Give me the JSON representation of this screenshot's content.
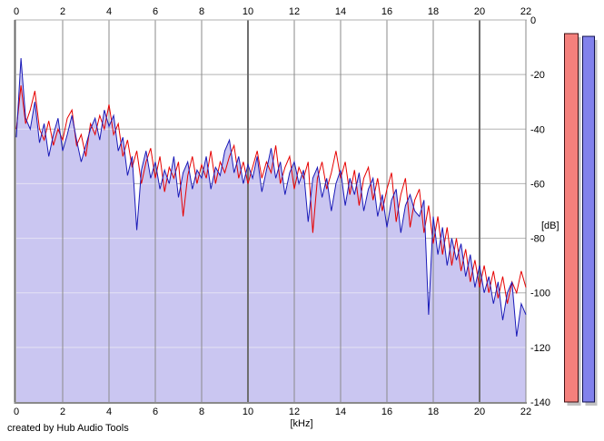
{
  "footer": {
    "credit": "created by Hub Audio Tools"
  },
  "axes": {
    "x": {
      "unit_label": "[kHz]",
      "ticks": [
        0,
        2,
        4,
        6,
        8,
        10,
        12,
        14,
        16,
        18,
        20,
        22
      ]
    },
    "y": {
      "unit_label": "[dB]",
      "ticks": [
        0,
        -20,
        -40,
        -60,
        -80,
        -100,
        -120,
        -140
      ]
    }
  },
  "colors": {
    "background": "#ffffff",
    "grid_vertical": "#8a8a8a",
    "grid_vertical_major": "#6e6e6e",
    "grid_horizontal": "#b2b2b2",
    "grid_horizontal_on_fill": "#e4e2f4",
    "axis_left": "#6a6a6a",
    "axis_bottom": "#8a8a8a",
    "axis_top": "#b2b2b2",
    "axis_right": "#8a8a8a",
    "text": "#000000",
    "meter_shadow": "#c2c2c2"
  },
  "meters": [
    {
      "name": "left-meter",
      "peak_db": -5,
      "fill": "#f4807c",
      "border": "#401014"
    },
    {
      "name": "right-meter",
      "peak_db": -6,
      "fill": "#8282ec",
      "border": "#101050"
    }
  ],
  "chart_data": {
    "type": "line",
    "title": "",
    "xlabel": "[kHz]",
    "ylabel": "[dB]",
    "xlim": [
      0,
      22
    ],
    "ylim": [
      -140,
      0
    ],
    "x_ticks": [
      0,
      2,
      4,
      6,
      8,
      10,
      12,
      14,
      16,
      18,
      20,
      22
    ],
    "y_ticks": [
      0,
      -20,
      -40,
      -60,
      -80,
      -100,
      -120,
      -140
    ],
    "grid": true,
    "legend": "none",
    "x_start": 0,
    "x_step_khz": 0.2,
    "series": [
      {
        "name": "red-channel",
        "color": "#e60000",
        "values_db": [
          -40,
          -24,
          -38,
          -33,
          -26,
          -40,
          -44,
          -37,
          -46,
          -40,
          -44,
          -36,
          -33,
          -46,
          -42,
          -50,
          -38,
          -42,
          -35,
          -40,
          -31,
          -42,
          -38,
          -50,
          -44,
          -54,
          -48,
          -60,
          -52,
          -47,
          -58,
          -50,
          -63,
          -54,
          -58,
          -52,
          -72,
          -57,
          -50,
          -60,
          -53,
          -58,
          -48,
          -60,
          -52,
          -56,
          -50,
          -46,
          -58,
          -52,
          -60,
          -54,
          -48,
          -58,
          -52,
          -56,
          -46,
          -60,
          -54,
          -50,
          -62,
          -54,
          -58,
          -52,
          -78,
          -58,
          -52,
          -62,
          -56,
          -48,
          -58,
          -52,
          -64,
          -55,
          -68,
          -58,
          -54,
          -66,
          -58,
          -70,
          -62,
          -56,
          -74,
          -64,
          -58,
          -76,
          -66,
          -62,
          -78,
          -68,
          -82,
          -72,
          -86,
          -76,
          -90,
          -80,
          -92,
          -84,
          -96,
          -88,
          -98,
          -90,
          -100,
          -92,
          -102,
          -94,
          -104,
          -96,
          -100,
          -92,
          -98
        ]
      },
      {
        "name": "blue-channel",
        "color": "#1a1ab8",
        "fill_under": "#cac6f1",
        "values_db": [
          -43,
          -14,
          -36,
          -40,
          -30,
          -45,
          -38,
          -50,
          -42,
          -36,
          -48,
          -42,
          -35,
          -44,
          -52,
          -46,
          -40,
          -36,
          -44,
          -33,
          -39,
          -35,
          -48,
          -43,
          -57,
          -50,
          -77,
          -55,
          -48,
          -58,
          -52,
          -62,
          -55,
          -60,
          -50,
          -65,
          -56,
          -52,
          -62,
          -55,
          -58,
          -50,
          -62,
          -54,
          -57,
          -48,
          -44,
          -56,
          -50,
          -60,
          -53,
          -58,
          -50,
          -63,
          -55,
          -47,
          -58,
          -52,
          -64,
          -56,
          -52,
          -60,
          -55,
          -74,
          -58,
          -54,
          -65,
          -58,
          -70,
          -60,
          -55,
          -68,
          -58,
          -64,
          -56,
          -70,
          -62,
          -58,
          -72,
          -64,
          -76,
          -66,
          -62,
          -78,
          -68,
          -64,
          -70,
          -72,
          -66,
          -108,
          -72,
          -86,
          -76,
          -90,
          -80,
          -88,
          -82,
          -94,
          -86,
          -98,
          -90,
          -100,
          -94,
          -104,
          -96,
          -110,
          -100,
          -96,
          -116,
          -104,
          -108
        ]
      }
    ]
  }
}
